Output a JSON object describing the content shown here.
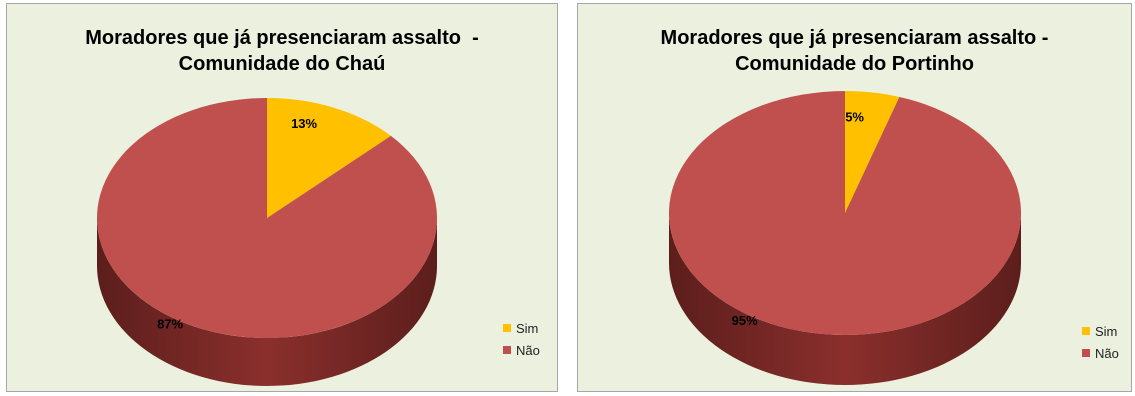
{
  "chart_data": [
    {
      "type": "pie",
      "title_lines": [
        "Moradores que já presenciaram assalto  -",
        "Comunidade do Chaú"
      ],
      "slices": [
        {
          "label": "Sim",
          "value": 13,
          "display": "13%",
          "color": "#ffc000"
        },
        {
          "label": "Não",
          "value": 87,
          "display": "87%",
          "color": "#c0504d"
        }
      ],
      "legend_position": "bottom-right"
    },
    {
      "type": "pie",
      "title_lines": [
        "Moradores que já presenciaram assalto -",
        "Comunidade do Portinho"
      ],
      "slices": [
        {
          "label": "Sim",
          "value": 5,
          "display": "5%",
          "color": "#ffc000"
        },
        {
          "label": "Não",
          "value": 95,
          "display": "95%",
          "color": "#c0504d"
        }
      ],
      "legend_position": "bottom-right"
    }
  ]
}
